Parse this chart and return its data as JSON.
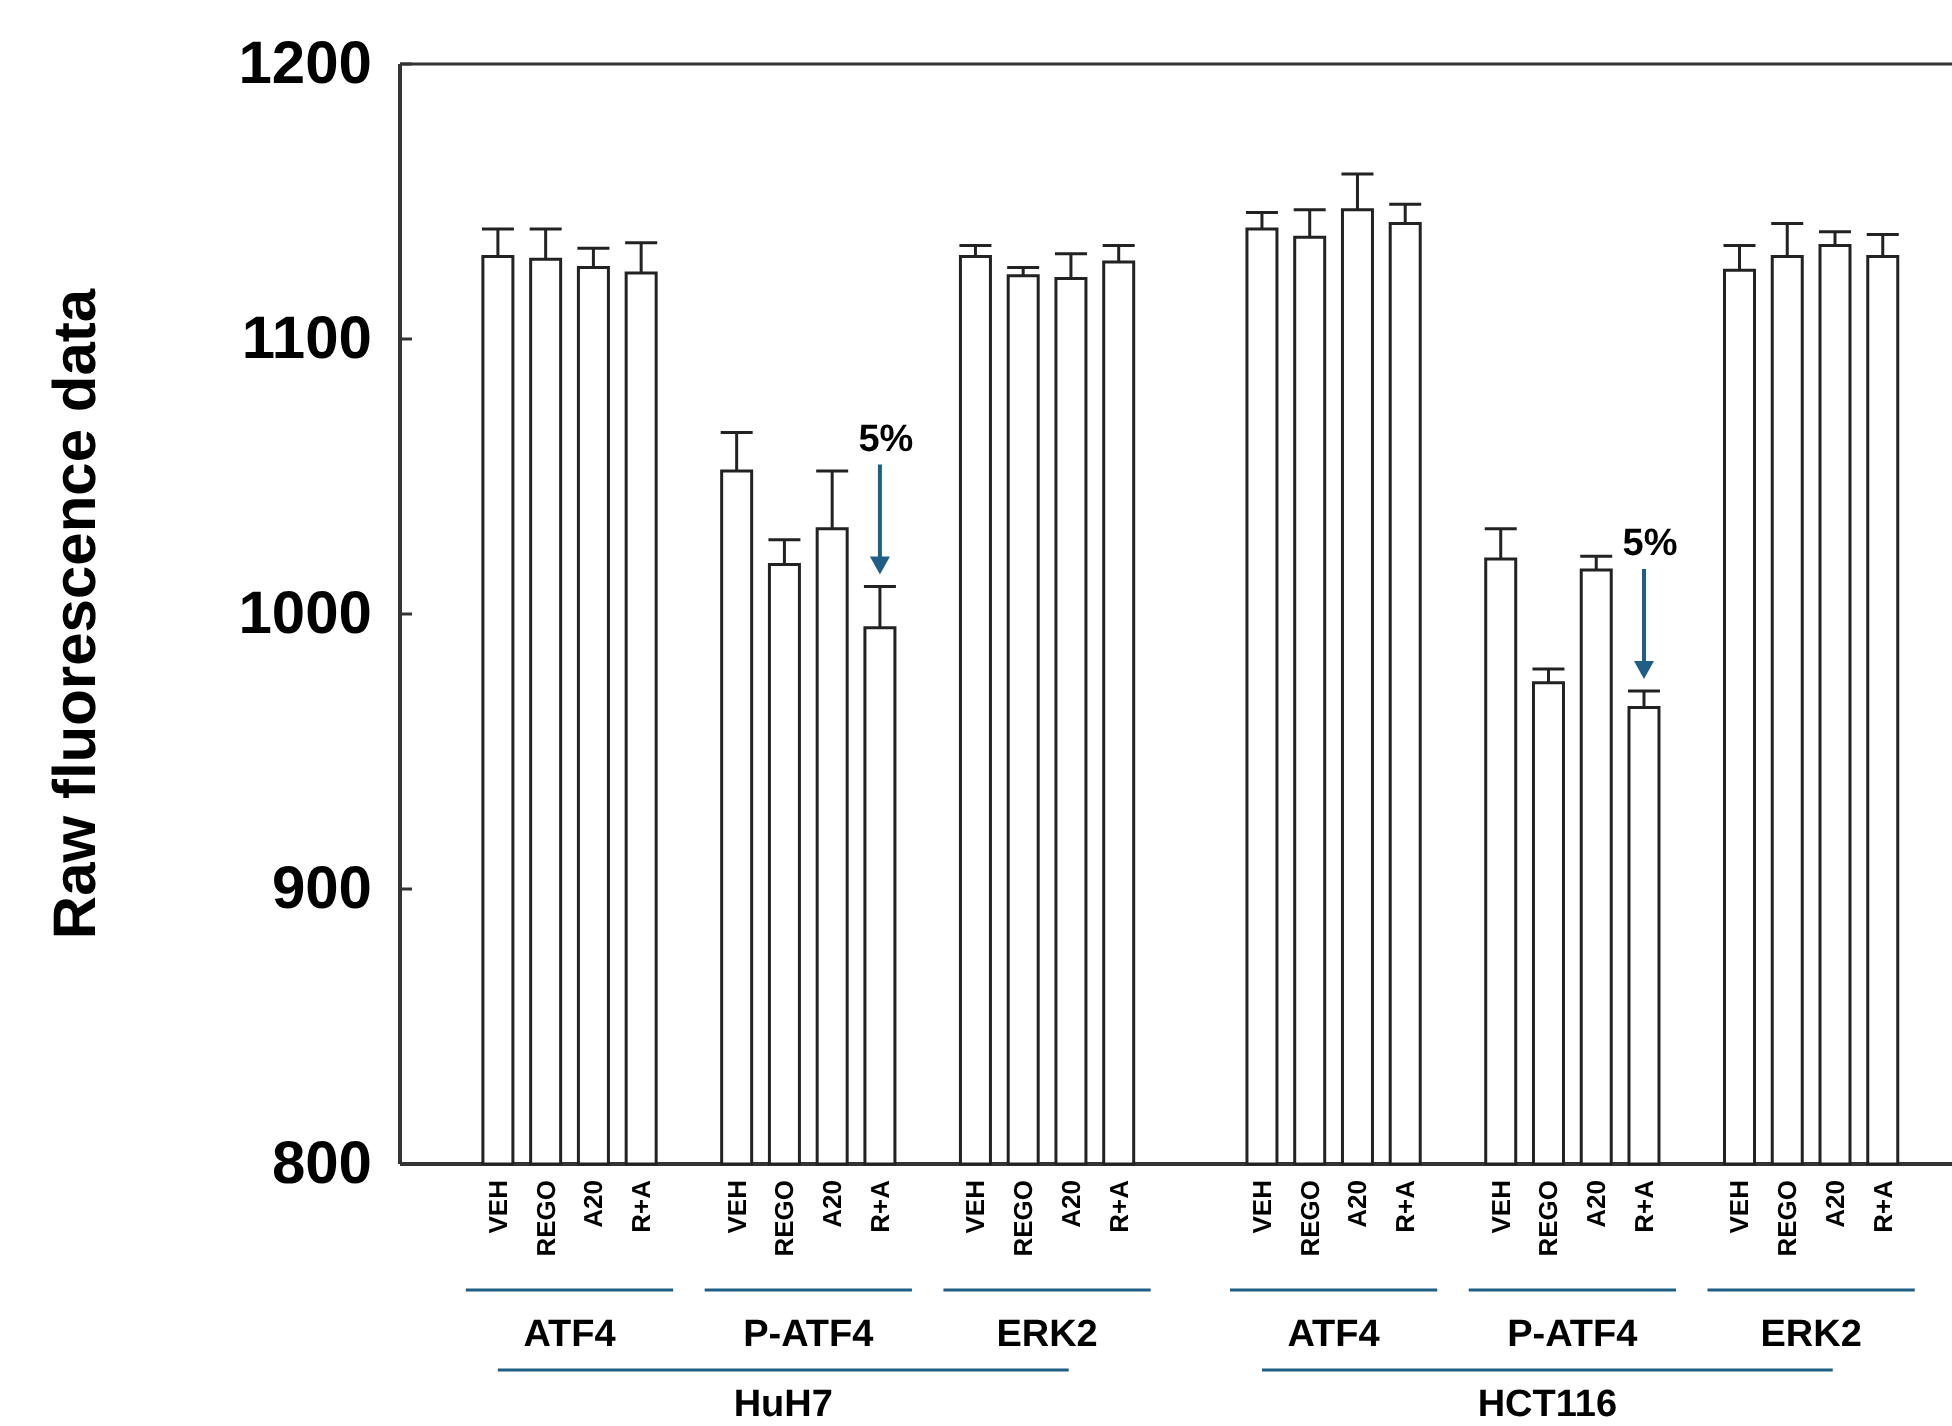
{
  "chart_data": {
    "type": "bar",
    "ylabel": "Raw fluorescence data",
    "categories": [
      "VEH",
      "REGO",
      "A20",
      "R+A",
      "VEH",
      "REGO",
      "A20",
      "R+A",
      "VEH",
      "REGO",
      "A20",
      "R+A",
      "VEH",
      "REGO",
      "A20",
      "R+A",
      "VEH",
      "REGO",
      "A20",
      "R+A",
      "VEH",
      "REGO",
      "A20",
      "R+A"
    ],
    "values": [
      1130,
      1129,
      1126,
      1124,
      1052,
      1018,
      1031,
      995,
      1130,
      1123,
      1122,
      1128,
      1140,
      1137,
      1147,
      1142,
      1020,
      975,
      1016,
      966,
      1125,
      1130,
      1134,
      1130
    ],
    "errors": [
      [
        1130,
        1140
      ],
      [
        1129,
        1140
      ],
      [
        1126,
        1133
      ],
      [
        1124,
        1135
      ],
      [
        1052,
        1066
      ],
      [
        1018,
        1027
      ],
      [
        1031,
        1052
      ],
      [
        995,
        1010
      ],
      [
        1130,
        1134
      ],
      [
        1123,
        1126
      ],
      [
        1122,
        1131
      ],
      [
        1128,
        1134
      ],
      [
        1140,
        1146
      ],
      [
        1137,
        1147
      ],
      [
        1147,
        1160
      ],
      [
        1142,
        1149
      ],
      [
        1020,
        1031
      ],
      [
        975,
        980
      ],
      [
        1016,
        1021
      ],
      [
        966,
        972
      ],
      [
        1125,
        1134
      ],
      [
        1130,
        1142
      ],
      [
        1134,
        1139
      ],
      [
        1130,
        1138
      ]
    ],
    "color": "#ffffff",
    "ylim": [
      800,
      1200
    ],
    "yticks": [
      800,
      900,
      1000,
      1100,
      1200
    ],
    "annotations": [
      "ATF4",
      "P-ATF4",
      "ERK2",
      "ATF4",
      "P-ATF4",
      "ERK2",
      "HuH7",
      "HCT116",
      "5%",
      "5%"
    ]
  }
}
